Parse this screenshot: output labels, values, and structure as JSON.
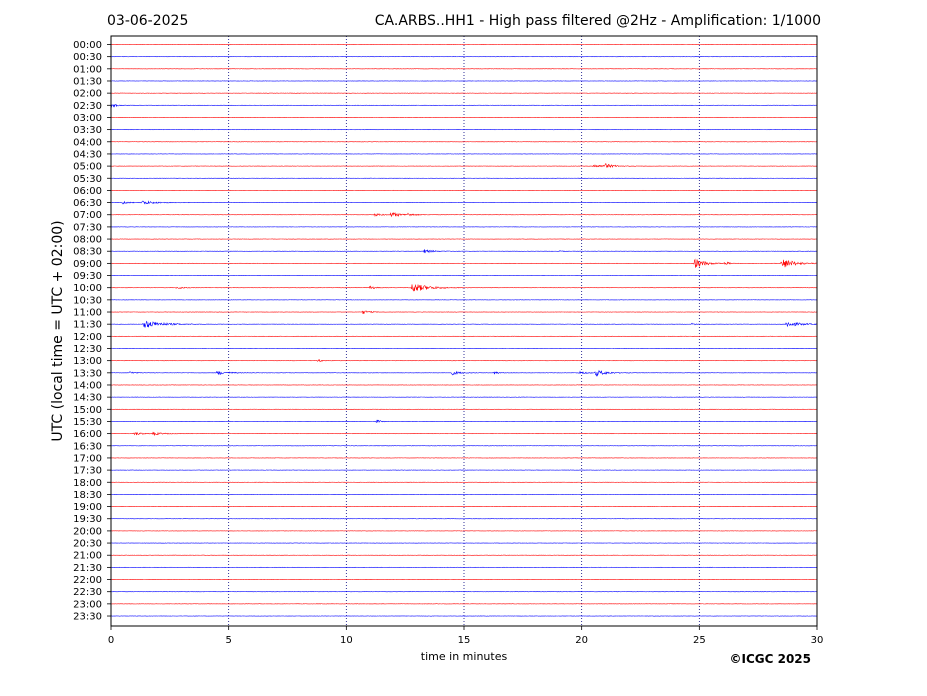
{
  "header": {
    "date": "03-06-2025",
    "title": "CA.ARBS..HH1 - High pass filtered @2Hz - Amplification: 1/1000"
  },
  "footer": {
    "copyright": "©ICGC 2025"
  },
  "chart_data": {
    "type": "line",
    "xlabel": "time in minutes",
    "ylabel": "UTC (local time = UTC + 02:00)",
    "xlim": [
      0,
      30
    ],
    "x_ticks": [
      0,
      5,
      10,
      15,
      20,
      25,
      30
    ],
    "grid": "vertical dotted lines at x = 5, 10, 15, 20, 25",
    "trace_colors": {
      "even": "#ff0000",
      "odd": "#0000ff"
    },
    "rows": [
      "00:00",
      "00:30",
      "01:00",
      "01:30",
      "02:00",
      "02:30",
      "03:00",
      "03:30",
      "04:00",
      "04:30",
      "05:00",
      "05:30",
      "06:00",
      "06:30",
      "07:00",
      "07:30",
      "08:00",
      "08:30",
      "09:00",
      "09:30",
      "10:00",
      "10:30",
      "11:00",
      "11:30",
      "12:00",
      "12:30",
      "13:00",
      "13:30",
      "14:00",
      "14:30",
      "15:00",
      "15:30",
      "16:00",
      "16:30",
      "17:00",
      "17:30",
      "18:00",
      "18:30",
      "19:00",
      "19:30",
      "20:00",
      "20:30",
      "21:00",
      "21:30",
      "22:00",
      "22:30",
      "23:00",
      "23:30"
    ],
    "events": [
      {
        "row": "02:30",
        "t": 0.0,
        "amp": 3,
        "dur": 0.3
      },
      {
        "row": "05:00",
        "t": 20.5,
        "amp": 1.5,
        "dur": 1.0
      },
      {
        "row": "05:00",
        "t": 21.0,
        "amp": 2,
        "dur": 0.4
      },
      {
        "row": "06:30",
        "t": 0.5,
        "amp": 1.5,
        "dur": 0.4
      },
      {
        "row": "06:30",
        "t": 1.3,
        "amp": 2,
        "dur": 0.9
      },
      {
        "row": "07:00",
        "t": 11.2,
        "amp": 1.5,
        "dur": 0.5
      },
      {
        "row": "07:00",
        "t": 11.9,
        "amp": 2.5,
        "dur": 0.6
      },
      {
        "row": "07:00",
        "t": 12.6,
        "amp": 1.5,
        "dur": 0.4
      },
      {
        "row": "08:30",
        "t": 13.3,
        "amp": 2,
        "dur": 0.6
      },
      {
        "row": "08:30",
        "t": 19.1,
        "amp": 1,
        "dur": 0.2
      },
      {
        "row": "09:00",
        "t": 24.8,
        "amp": 5,
        "dur": 0.7
      },
      {
        "row": "09:00",
        "t": 26.1,
        "amp": 1.5,
        "dur": 0.3
      },
      {
        "row": "09:00",
        "t": 28.5,
        "amp": 5.5,
        "dur": 0.8
      },
      {
        "row": "10:00",
        "t": 2.8,
        "amp": 1.5,
        "dur": 0.4
      },
      {
        "row": "10:00",
        "t": 11.0,
        "amp": 1.5,
        "dur": 0.4
      },
      {
        "row": "10:00",
        "t": 12.8,
        "amp": 5,
        "dur": 1.0
      },
      {
        "row": "11:00",
        "t": 10.7,
        "amp": 2,
        "dur": 0.4
      },
      {
        "row": "11:30",
        "t": 1.4,
        "amp": 4,
        "dur": 1.2
      },
      {
        "row": "11:30",
        "t": 24.7,
        "amp": 1.5,
        "dur": 0.2
      },
      {
        "row": "11:30",
        "t": 28.7,
        "amp": 3,
        "dur": 0.9
      },
      {
        "row": "13:00",
        "t": 8.8,
        "amp": 1.5,
        "dur": 0.3
      },
      {
        "row": "13:30",
        "t": 0.8,
        "amp": 1.5,
        "dur": 0.3
      },
      {
        "row": "13:30",
        "t": 4.5,
        "amp": 2,
        "dur": 0.8
      },
      {
        "row": "13:30",
        "t": 14.5,
        "amp": 2,
        "dur": 0.5
      },
      {
        "row": "13:30",
        "t": 16.3,
        "amp": 1.5,
        "dur": 0.3
      },
      {
        "row": "13:30",
        "t": 19.9,
        "amp": 1.5,
        "dur": 0.5
      },
      {
        "row": "13:30",
        "t": 20.6,
        "amp": 3,
        "dur": 0.7
      },
      {
        "row": "15:30",
        "t": 11.3,
        "amp": 1.5,
        "dur": 0.3
      },
      {
        "row": "16:00",
        "t": 1.0,
        "amp": 2,
        "dur": 0.4
      },
      {
        "row": "16:00",
        "t": 1.8,
        "amp": 1.5,
        "dur": 0.6
      }
    ]
  }
}
